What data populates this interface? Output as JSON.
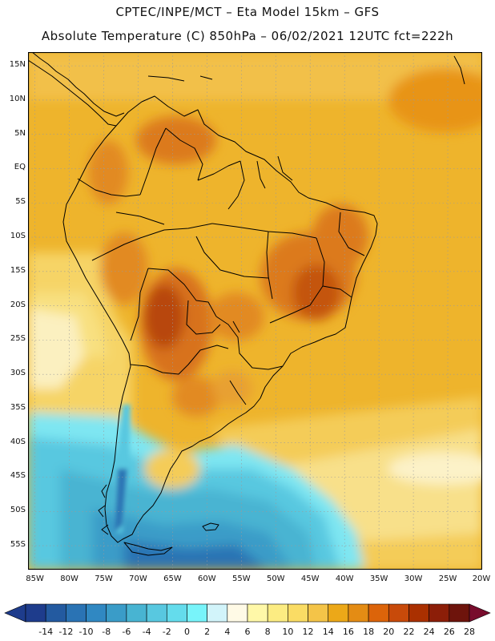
{
  "header": {
    "line1": "CPTEC/INPE/MCT –  Eta Model 15km – GFS",
    "line2": "Absolute Temperature (C) 850hPa – 06/02/2021 12UTC fct=222h"
  },
  "axes": {
    "lat_labels": [
      "15N",
      "10N",
      "5N",
      "EQ",
      "5S",
      "10S",
      "15S",
      "20S",
      "25S",
      "30S",
      "35S",
      "40S",
      "45S",
      "50S",
      "55S"
    ],
    "lon_labels": [
      "85W",
      "80W",
      "75W",
      "70W",
      "65W",
      "60W",
      "55W",
      "50W",
      "45W",
      "40W",
      "35W",
      "30W",
      "25W",
      "20W"
    ]
  },
  "colorbar": {
    "labels": [
      "-14",
      "-12",
      "-10",
      "-8",
      "-6",
      "-4",
      "-2",
      "0",
      "2",
      "4",
      "6",
      "8",
      "10",
      "12",
      "14",
      "16",
      "18",
      "20",
      "22",
      "24",
      "26",
      "28"
    ],
    "colors": [
      "#1e3c8c",
      "#235aa0",
      "#2a73b4",
      "#3088c2",
      "#3a9cc8",
      "#48b4d2",
      "#58c8e0",
      "#64dcec",
      "#78f4fa",
      "#d2f4fa",
      "#fffae6",
      "#fff8a8",
      "#fcec82",
      "#fadc64",
      "#f4c448",
      "#eca818",
      "#e48c14",
      "#dc640a",
      "#c84a0a",
      "#aa3000",
      "#8c1e08",
      "#6e140c"
    ],
    "low_color": "#1e3c8c",
    "high_color": "#780c2c"
  },
  "colors": {
    "land_warm": "#f2c44a",
    "border": "#000000",
    "grid": "#9a9a9a"
  }
}
